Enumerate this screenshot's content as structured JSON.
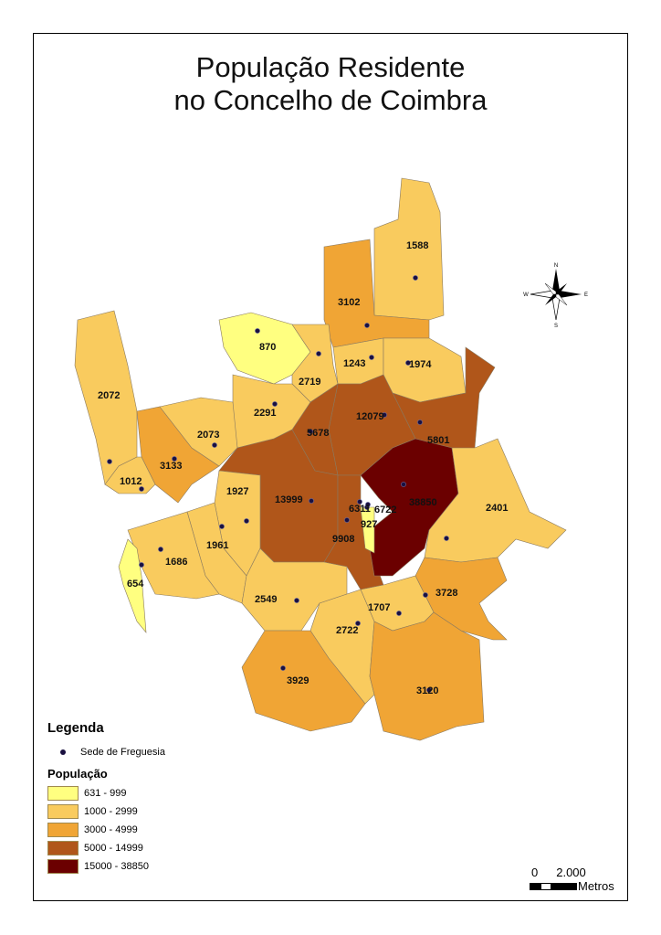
{
  "title": [
    "População Residente",
    "no Concelho de Coimbra"
  ],
  "legend": {
    "title": "Legenda",
    "point_label": "Sede de Freguesia",
    "population_title": "População",
    "classes": [
      {
        "label": "631 - 999",
        "color": "#FFFF80"
      },
      {
        "label": "1000 - 2999",
        "color": "#F9CB5E"
      },
      {
        "label": "3000 - 4999",
        "color": "#F0A535"
      },
      {
        "label": "5000 - 14999",
        "color": "#B0561A"
      },
      {
        "label": "15000 - 38850",
        "color": "#6B0000"
      }
    ]
  },
  "scale": {
    "zero": "0",
    "distance": "2.000",
    "unit": "Metros"
  },
  "compass": {
    "n": "N",
    "s": "S",
    "e": "E",
    "w": "W"
  },
  "freguesias": [
    {
      "population": "1588",
      "class": 1
    },
    {
      "population": "3102",
      "class": 2
    },
    {
      "population": "870",
      "class": 0
    },
    {
      "population": "2719",
      "class": 1
    },
    {
      "population": "1243",
      "class": 1
    },
    {
      "population": "1974",
      "class": 1
    },
    {
      "population": "5801",
      "class": 3
    },
    {
      "population": "12079",
      "class": 3
    },
    {
      "population": "5678",
      "class": 3
    },
    {
      "population": "2291",
      "class": 1
    },
    {
      "population": "2072",
      "class": 1
    },
    {
      "population": "3133",
      "class": 2
    },
    {
      "population": "2073",
      "class": 1
    },
    {
      "population": "1012",
      "class": 1
    },
    {
      "population": "13999",
      "class": 3
    },
    {
      "population": "9908",
      "class": 3
    },
    {
      "population": "38850",
      "class": 4
    },
    {
      "population": "927",
      "class": 0
    },
    {
      "population": "2401",
      "class": 1
    },
    {
      "population": "3728",
      "class": 2
    },
    {
      "population": "1927",
      "class": 1
    },
    {
      "population": "1961",
      "class": 1
    },
    {
      "population": "1686",
      "class": 1
    },
    {
      "population": "654",
      "class": 0
    },
    {
      "population": "2549",
      "class": 1
    },
    {
      "population": "1707",
      "class": 1
    },
    {
      "population": "2722",
      "class": 1
    },
    {
      "population": "3929",
      "class": 2
    },
    {
      "population": "3120",
      "class": 2
    },
    {
      "population": "6311",
      "class": 3
    },
    {
      "population": "6722",
      "class": 3
    }
  ]
}
